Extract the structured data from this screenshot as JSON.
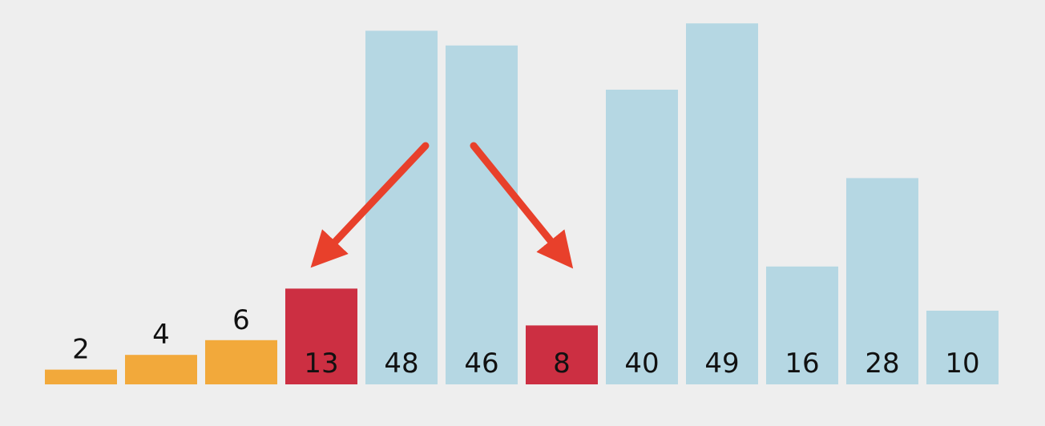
{
  "chart_data": {
    "type": "bar",
    "categories": [
      "2",
      "4",
      "6",
      "13",
      "48",
      "46",
      "8",
      "40",
      "49",
      "16",
      "28",
      "10"
    ],
    "values": [
      2,
      4,
      6,
      13,
      48,
      46,
      8,
      40,
      49,
      16,
      28,
      10
    ],
    "states": [
      "sorted",
      "sorted",
      "sorted",
      "active",
      "unsorted",
      "unsorted",
      "active",
      "unsorted",
      "unsorted",
      "unsorted",
      "unsorted",
      "unsorted"
    ],
    "title": "",
    "xlabel": "",
    "ylabel": "",
    "ylim": [
      0,
      50
    ],
    "grid": false,
    "annotations": [
      {
        "type": "arrow",
        "from_category_index": 4,
        "to_category_index": 3
      },
      {
        "type": "arrow",
        "from_category_index": 5,
        "to_category_index": 6
      }
    ]
  },
  "colors": {
    "background": "#eeeeee",
    "sorted": "#f2a93b",
    "active": "#cc2f42",
    "unsorted": "#b5d7e3",
    "arrow": "#e8402b",
    "label": "#111111"
  }
}
